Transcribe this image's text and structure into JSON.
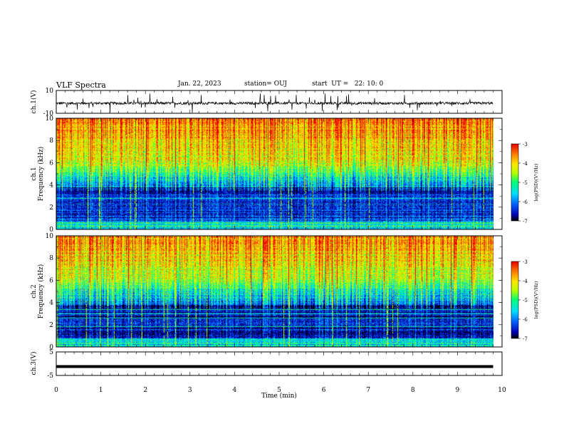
{
  "header": {
    "title": "VLF Spectra",
    "date": "Jan. 22, 2023",
    "station": "station= OUJ",
    "start": "start  UT =   22: 10: 0"
  },
  "chart_data": [
    {
      "type": "line",
      "panel": "ch1-waveform",
      "ylabel": "ch.1(V)",
      "ylim": [
        -10,
        10
      ],
      "yticks": [
        "10",
        "-10"
      ],
      "xlim": [
        0,
        10
      ],
      "data_extent_min": 9.8,
      "baseline_v": -1.2,
      "color": "#000000"
    },
    {
      "type": "heatmap",
      "panel": "ch1-spectrogram",
      "ylabel": "ch.1\nFrequency (kHz)",
      "ylim": [
        0,
        10
      ],
      "yticks": [
        "0",
        "2",
        "4",
        "6",
        "8",
        "10"
      ],
      "xlim": [
        0,
        10
      ],
      "colorbar": {
        "label": "log(PSD)(V²/Hz)",
        "range": [
          -7,
          -3
        ],
        "ticks": [
          "-3",
          "-4",
          "-5",
          "-6",
          "-7"
        ]
      }
    },
    {
      "type": "heatmap",
      "panel": "ch2-spectrogram",
      "ylabel": "ch.2\nFrequency (kHz)",
      "ylim": [
        0,
        10
      ],
      "yticks": [
        "0",
        "2",
        "4",
        "6",
        "8",
        "10"
      ],
      "xlim": [
        0,
        10
      ],
      "colorbar": {
        "label": "log(PSD)(V²/Hz)",
        "range": [
          -7,
          -3
        ],
        "ticks": [
          "-3",
          "-4",
          "-5",
          "-6",
          "-7"
        ]
      }
    },
    {
      "type": "line",
      "panel": "ch3-waveform",
      "ylabel": "ch.3(V)",
      "ylim": [
        -5,
        5
      ],
      "yticks": [
        "5",
        "-5"
      ],
      "xlim": [
        0,
        10
      ],
      "constant_value_v": -1.2,
      "color": "#000000"
    }
  ],
  "xaxis": {
    "label": "Time (min)",
    "ticks": [
      "0",
      "1",
      "2",
      "3",
      "4",
      "5",
      "6",
      "7",
      "8",
      "9",
      "10"
    ]
  },
  "colors": {
    "spectral": [
      "#000000",
      "#0000b4",
      "#0064ff",
      "#00dcff",
      "#00ff78",
      "#b4ff00",
      "#ffe600",
      "#ff8200",
      "#e60000"
    ]
  }
}
